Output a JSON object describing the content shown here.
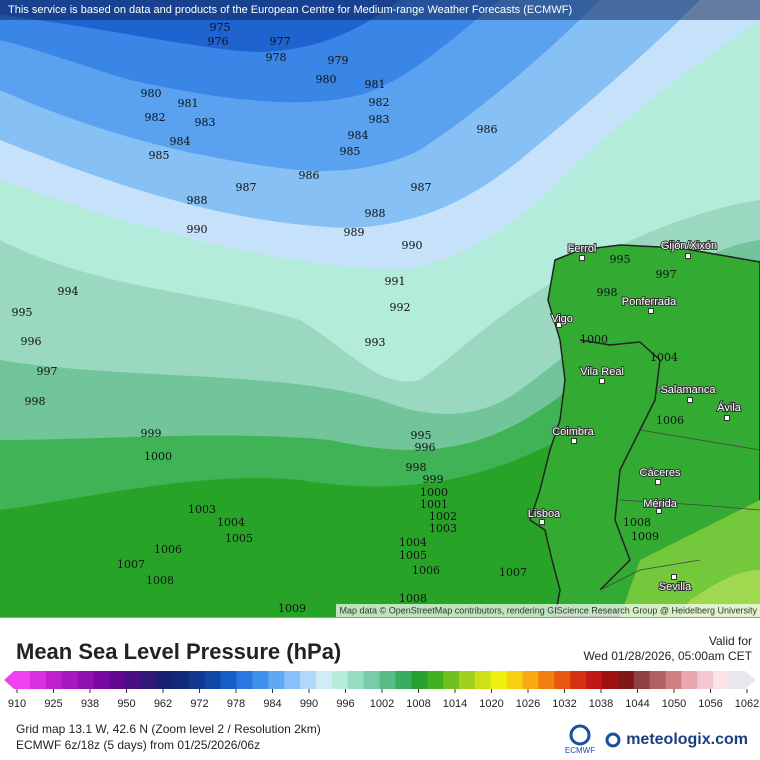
{
  "map": {
    "notice": "This service is based on data and products of the European Centre for Medium-range Weather Forecasts (ECMWF)",
    "attribution": "Map data © OpenStreetMap contributors, rendering GIScience Research Group @ Heidelberg University",
    "isobars": [
      975,
      976,
      977,
      978,
      979,
      980,
      980,
      981,
      981,
      982,
      982,
      983,
      983,
      984,
      984,
      985,
      985,
      986,
      986,
      987,
      987,
      988,
      988,
      989,
      990,
      990,
      991,
      992,
      993,
      994,
      995,
      996,
      997,
      998,
      999,
      1000,
      995,
      996,
      998,
      999,
      1000,
      1001,
      1002,
      1003,
      1003,
      1004,
      1005,
      1006,
      1007,
      1008,
      1009,
      1004,
      1005,
      1006,
      1007,
      1008,
      995,
      997,
      998,
      1000,
      1004,
      1006,
      1008,
      1009
    ],
    "places": [
      "Ferrol",
      "Gijón/Xixón",
      "Ponferrada",
      "Vigo",
      "Vila Real",
      "Salamanca",
      "Ávila",
      "Coimbra",
      "Cáceres",
      "Mérida",
      "Lisboa",
      "Sevilla"
    ]
  },
  "legend": {
    "title": "Mean Sea Level Pressure (hPa)",
    "valid_label": "Valid for",
    "valid_time": "Wed 01/28/2026, 05:00am CET",
    "colorbar": {
      "ticks": [
        910,
        925,
        938,
        950,
        962,
        972,
        978,
        984,
        990,
        996,
        1002,
        1008,
        1014,
        1020,
        1026,
        1032,
        1038,
        1044,
        1050,
        1056,
        1062
      ],
      "colors": [
        "#f040f0",
        "#d830e0",
        "#c020d0",
        "#a818c0",
        "#9010b0",
        "#7808a0",
        "#600890",
        "#481080",
        "#301878",
        "#182070",
        "#10287a",
        "#103890",
        "#1048a8",
        "#1860c8",
        "#2878e0",
        "#4090ee",
        "#60a8f4",
        "#88c0f8",
        "#b0d8fa",
        "#d0ecf6",
        "#b8ecdc",
        "#98dcc4",
        "#78cca8",
        "#58bc88",
        "#38ac60",
        "#28a030",
        "#40b020",
        "#70c020",
        "#a0d020",
        "#d0e018",
        "#f0f010",
        "#f8d010",
        "#f8a810",
        "#f08010",
        "#e85810",
        "#d83010",
        "#c01818",
        "#a01010",
        "#801818",
        "#904040",
        "#b06060",
        "#d08080",
        "#e8a8b0",
        "#f4c8d0",
        "#fae4e8",
        "#e8e8ec"
      ]
    }
  },
  "footer": {
    "grid": "Grid map 13.1 W, 42.6 N (Zoom level 2 / Resolution 2km)",
    "model": "ECMWF 6z/18z (5 days)  from  01/25/2026/06z",
    "ecmwf": "ECMWF",
    "brand": "meteologix.com"
  }
}
